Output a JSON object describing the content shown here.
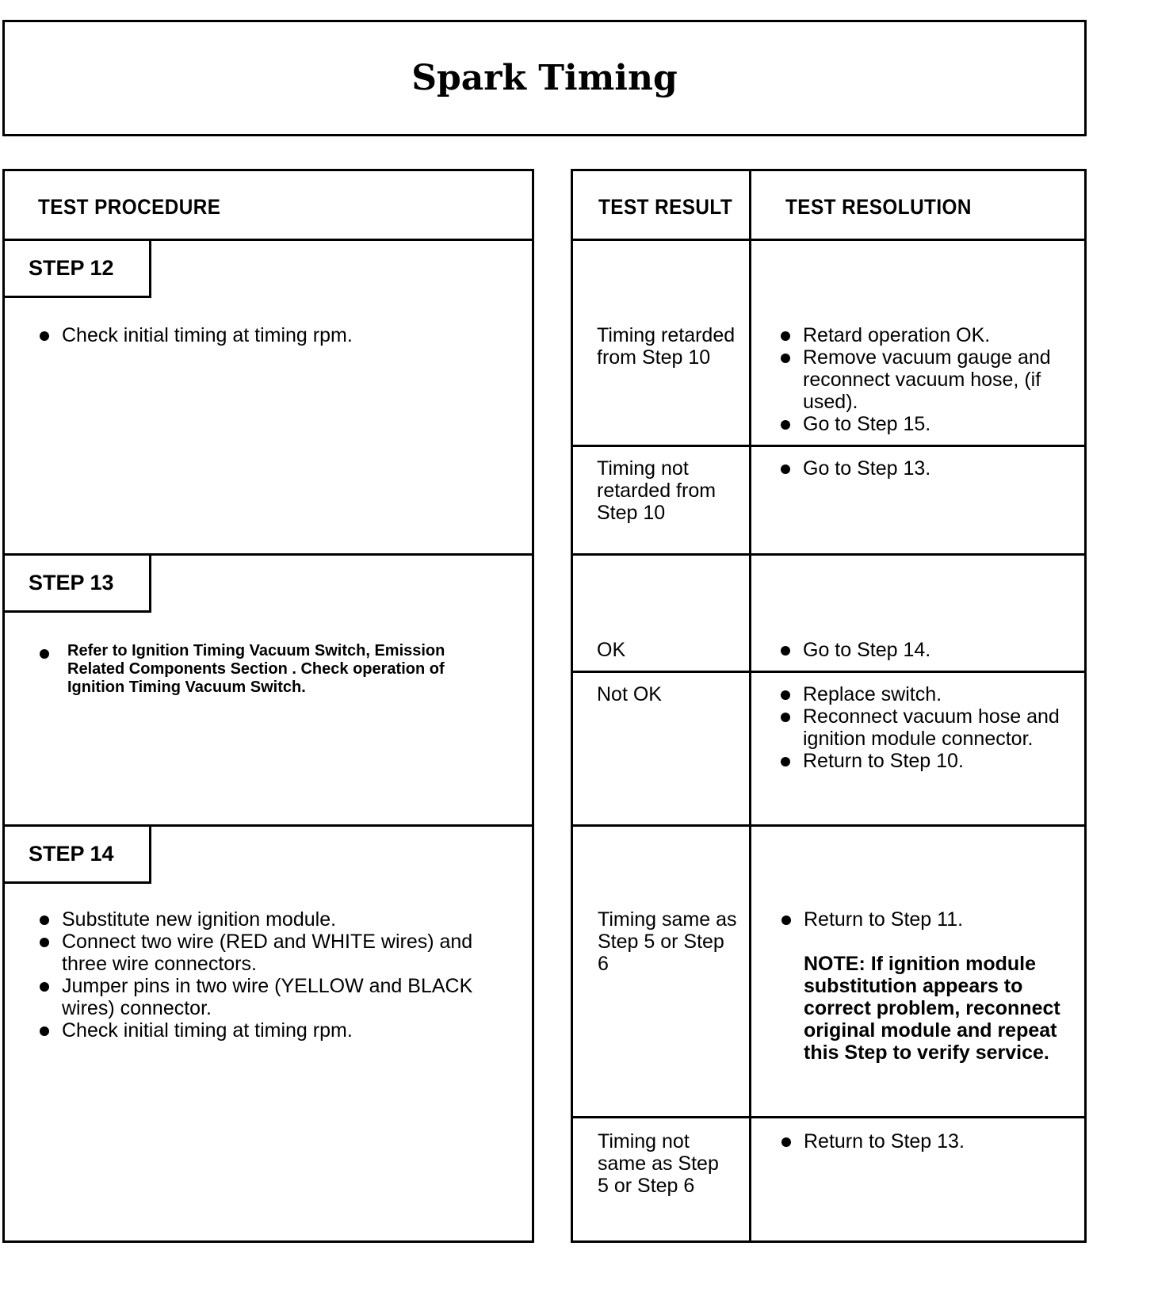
{
  "title": "Spark Timing",
  "headers": {
    "procedure": "TEST PROCEDURE",
    "result": "TEST RESULT",
    "resolution": "TEST RESOLUTION"
  },
  "steps": [
    {
      "label": "STEP 12",
      "items": [
        "Check initial timing at timing rpm."
      ]
    },
    {
      "label": "STEP 13",
      "items": [
        "Refer to Ignition Timing Vacuum Switch, Emission Related Components Section . Check operation of Ignition Timing Vacuum Switch."
      ]
    },
    {
      "label": "STEP 14",
      "items": [
        "Substitute new ignition module.",
        "Connect two wire (RED and WHITE wires) and three wire connectors.",
        "Jumper pins in two wire (YELLOW and BLACK wires) connector.",
        "Check initial timing at timing rpm."
      ]
    }
  ],
  "results": [
    {
      "result": "Timing retarded from Step 10",
      "resolution": [
        "Retard operation OK.",
        "Remove vacuum gauge and reconnect vacuum hose, (if used).",
        "Go to Step 15."
      ]
    },
    {
      "result": "Timing not retarded from Step 10",
      "resolution": [
        "Go to Step 13."
      ]
    },
    {
      "result": "OK",
      "resolution": [
        "Go to Step 14."
      ]
    },
    {
      "result": "Not OK",
      "resolution": [
        "Replace switch.",
        "Reconnect vacuum hose and ignition module connector.",
        "Return to Step 10."
      ]
    },
    {
      "result": "Timing same as Step 5 or Step 6",
      "resolution": [
        "Return to Step 11."
      ],
      "note": "NOTE: If ignition module substitution appears to correct problem, reconnect original module and repeat this Step to verify service."
    },
    {
      "result": "Timing not same as Step 5 or Step 6",
      "resolution": [
        "Return to Step 13."
      ]
    }
  ]
}
